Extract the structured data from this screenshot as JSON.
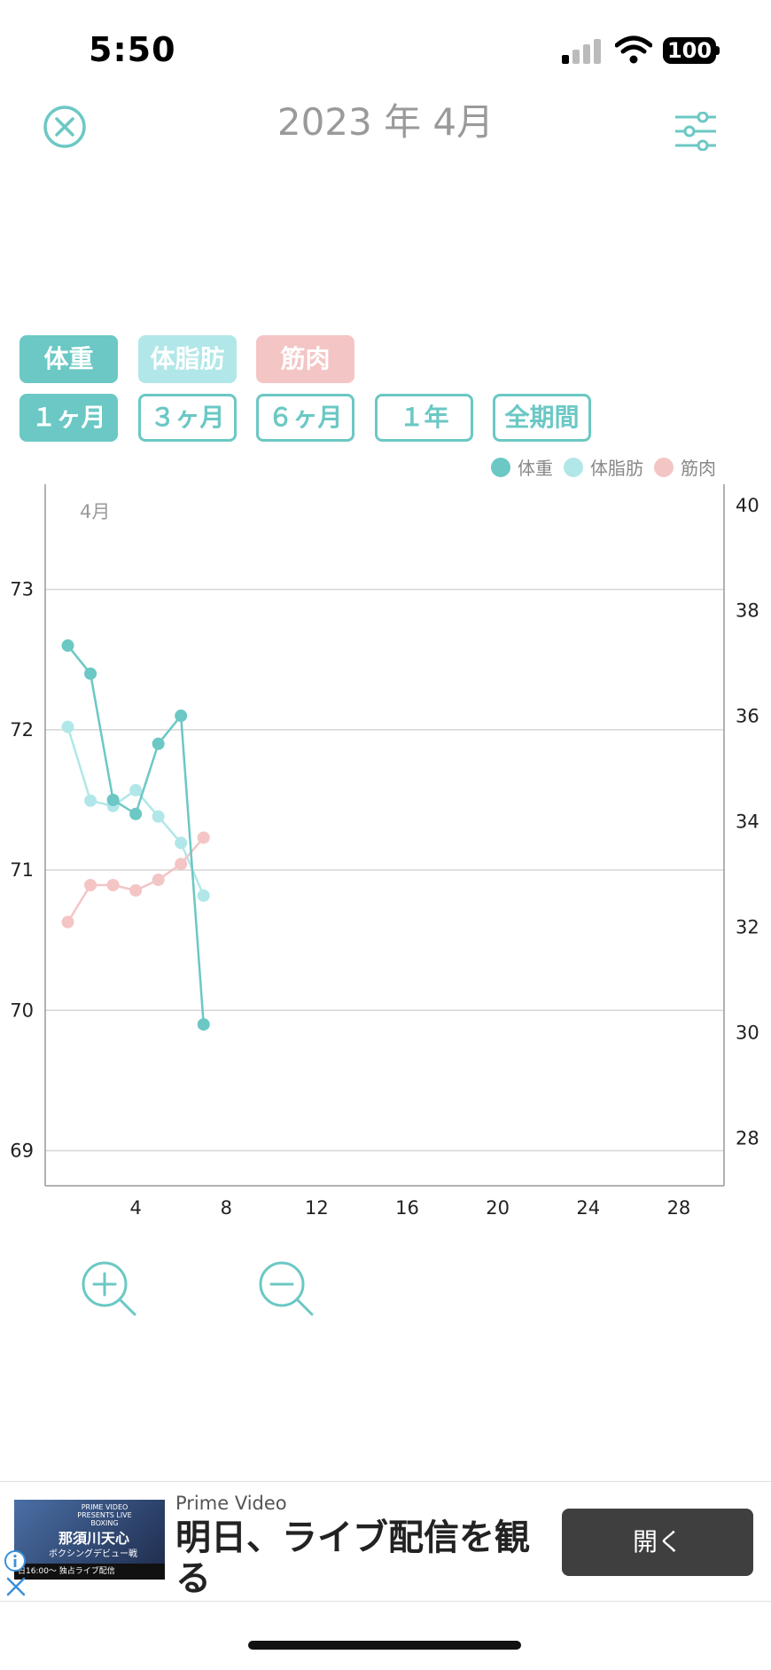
{
  "status_bar": {
    "time": "5:50",
    "battery": "100"
  },
  "header": {
    "title": "2023 年 4月",
    "close_icon": "close-circle-icon",
    "filter_icon": "sliders-icon"
  },
  "metric_tabs": [
    {
      "label": "体重",
      "color": "#6bc8c4"
    },
    {
      "label": "体脂肪",
      "color": "#b1e7e8"
    },
    {
      "label": "筋肉",
      "color": "#f4c5c5"
    }
  ],
  "period_tabs": [
    {
      "label": "１ヶ月",
      "active": true
    },
    {
      "label": "３ヶ月",
      "active": false
    },
    {
      "label": "６ヶ月",
      "active": false
    },
    {
      "label": "１年",
      "active": false
    },
    {
      "label": "全期間",
      "active": false
    }
  ],
  "legend": [
    {
      "label": "体重",
      "color": "#6bc8c4"
    },
    {
      "label": "体脂肪",
      "color": "#b1e7e8"
    },
    {
      "label": "筋肉",
      "color": "#f4c5c5"
    }
  ],
  "chart_data": {
    "type": "line",
    "month_label": "4月",
    "x_ticks": [
      "4",
      "8",
      "12",
      "16",
      "20",
      "24",
      "28"
    ],
    "x_range": [
      0,
      30
    ],
    "y_left_ticks": [
      "73",
      "72",
      "71",
      "70",
      "69"
    ],
    "y_left_range": [
      68.75,
      73.75
    ],
    "y_right_ticks": [
      "40",
      "38",
      "36",
      "34",
      "32",
      "30",
      "28"
    ],
    "y_right_range": [
      27.1,
      40.4
    ],
    "grid": true,
    "legend_placement": "top-right",
    "series": [
      {
        "name": "体重",
        "axis": "left",
        "color": "#6bc8c4",
        "x": [
          1,
          2,
          3,
          4,
          5,
          6,
          7
        ],
        "y": [
          72.6,
          72.4,
          71.5,
          71.4,
          71.9,
          72.1,
          69.9
        ]
      },
      {
        "name": "体脂肪",
        "axis": "right",
        "color": "#b1e7e8",
        "x": [
          1,
          2,
          3,
          4,
          5,
          6,
          7
        ],
        "y": [
          35.8,
          34.4,
          34.3,
          34.6,
          34.1,
          33.6,
          32.6
        ]
      },
      {
        "name": "筋肉",
        "axis": "right",
        "color": "#f4c5c5",
        "x": [
          1,
          2,
          3,
          4,
          5,
          6,
          7
        ],
        "y": [
          32.1,
          32.8,
          32.8,
          32.7,
          32.9,
          33.2,
          33.7
        ]
      }
    ]
  },
  "zoom": {
    "in_icon": "zoom-in-icon",
    "out_icon": "zoom-out-icon"
  },
  "ad": {
    "thumb_top": "PRIME VIDEO PRESENTS LIVE BOXING",
    "thumb_title": "那須川天心",
    "thumb_sub": "ボクシングデビュー戦",
    "thumb_bar": "日16:00〜 独占ライブ配信",
    "brand": "Prime Video",
    "headline": "明日、ライブ配信を観る",
    "cta": "開く"
  }
}
